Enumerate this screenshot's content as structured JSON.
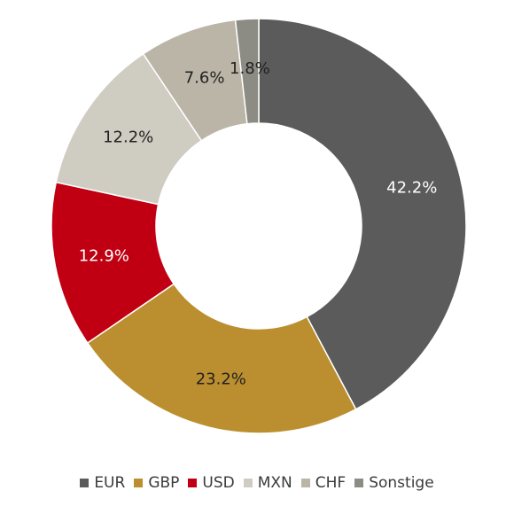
{
  "chart_data": {
    "type": "pie",
    "title": "",
    "donut": true,
    "legend_position": "bottom",
    "slices": [
      {
        "name": "EUR",
        "value": 42.2,
        "label": "42.2%",
        "color": "#5a5b5a",
        "label_color": "#ffffff"
      },
      {
        "name": "GBP",
        "value": 23.2,
        "label": "23.2%",
        "color": "#bb8f2f",
        "label_color": "#222222"
      },
      {
        "name": "USD",
        "value": 12.9,
        "label": "12.9%",
        "color": "#c00012",
        "label_color": "#ffffff"
      },
      {
        "name": "MXN",
        "value": 12.2,
        "label": "12.2%",
        "color": "#cfccc2",
        "label_color": "#222222"
      },
      {
        "name": "CHF",
        "value": 7.6,
        "label": "7.6%",
        "color": "#bbb5a7",
        "label_color": "#222222"
      },
      {
        "name": "Sonstige",
        "value": 1.8,
        "label": "1.8%",
        "color": "#8c8c84",
        "label_color": "#222222"
      }
    ]
  }
}
